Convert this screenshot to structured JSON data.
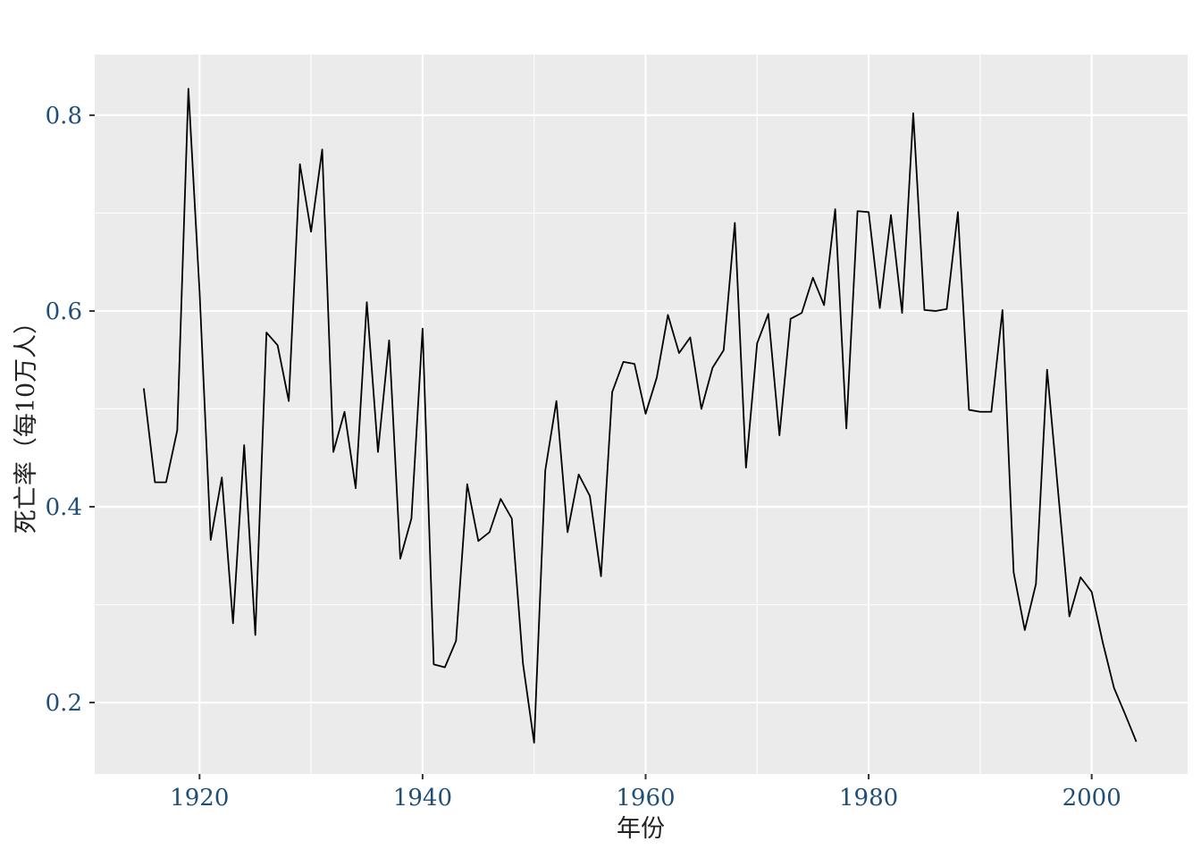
{
  "chart_data": {
    "type": "line",
    "title": "",
    "xlabel": "年份",
    "ylabel": "死亡率（每10万人）",
    "xlim": [
      1910.6,
      2008.6
    ],
    "ylim": [
      0.127,
      0.862
    ],
    "x_ticks": [
      1920,
      1940,
      1960,
      1980,
      2000
    ],
    "x_tick_labels": [
      "1920",
      "1940",
      "1960",
      "1980",
      "2000"
    ],
    "y_ticks": [
      0.2,
      0.4,
      0.6,
      0.8
    ],
    "y_tick_labels": [
      "0.2",
      "0.4",
      "0.6",
      "0.8"
    ],
    "grid": true,
    "legend": "none",
    "colors": {
      "panel_background": "#ebebeb",
      "grid": "#ffffff",
      "line": "#000000",
      "tick_label": "#1f4e79",
      "axis_title": "#222222"
    },
    "series": [
      {
        "x": [
          1915,
          1916,
          1917,
          1918,
          1919,
          1920,
          1921,
          1922,
          1923,
          1924,
          1925,
          1926,
          1927,
          1928,
          1929,
          1930,
          1931,
          1932,
          1933,
          1934,
          1935,
          1936,
          1937,
          1938,
          1939,
          1940,
          1941,
          1942,
          1943,
          1944,
          1945,
          1946,
          1947,
          1948,
          1949,
          1950,
          1951,
          1952,
          1953,
          1954,
          1955,
          1956,
          1957,
          1958,
          1959,
          1960,
          1961,
          1962,
          1963,
          1964,
          1965,
          1966,
          1967,
          1968,
          1969,
          1970,
          1971,
          1972,
          1973,
          1974,
          1975,
          1976,
          1977,
          1978,
          1979,
          1980,
          1981,
          1982,
          1983,
          1984,
          1985,
          1986,
          1987,
          1988,
          1989,
          1990,
          1991,
          1992,
          1993,
          1994,
          1995,
          1996,
          1997,
          1998,
          1999,
          2000,
          2001,
          2002,
          2003,
          2004
        ],
        "values": [
          0.521,
          0.425,
          0.425,
          0.478,
          0.827,
          0.62,
          0.366,
          0.43,
          0.281,
          0.463,
          0.269,
          0.578,
          0.565,
          0.508,
          0.75,
          0.681,
          0.765,
          0.456,
          0.497,
          0.419,
          0.609,
          0.456,
          0.57,
          0.347,
          0.388,
          0.582,
          0.239,
          0.236,
          0.263,
          0.423,
          0.365,
          0.374,
          0.408,
          0.388,
          0.24,
          0.159,
          0.437,
          0.508,
          0.374,
          0.433,
          0.411,
          0.329,
          0.517,
          0.548,
          0.546,
          0.495,
          0.532,
          0.596,
          0.557,
          0.573,
          0.5,
          0.542,
          0.56,
          0.69,
          0.44,
          0.567,
          0.597,
          0.473,
          0.592,
          0.598,
          0.634,
          0.606,
          0.704,
          0.48,
          0.702,
          0.701,
          0.603,
          0.698,
          0.598,
          0.802,
          0.601,
          0.6,
          0.602,
          0.701,
          0.499,
          0.497,
          0.497,
          0.601,
          0.333,
          0.274,
          0.321,
          0.54,
          0.414,
          0.288,
          0.328,
          0.313,
          0.261,
          0.215,
          0.188,
          0.16
        ]
      }
    ]
  }
}
